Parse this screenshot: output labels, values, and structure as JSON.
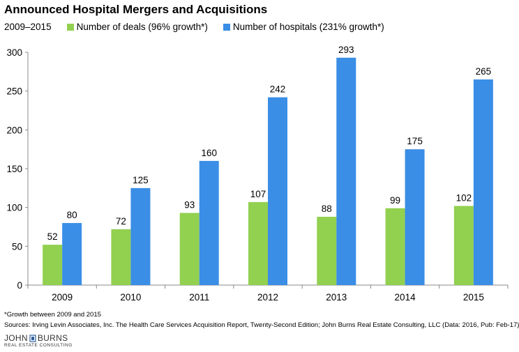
{
  "header": {
    "title": "Announced Hospital Mergers and Acquisitions",
    "period": "2009–2015"
  },
  "legend": [
    {
      "label": "Number of deals (96% growth*)",
      "color": "#92d050"
    },
    {
      "label": "Number of hospitals (231% growth*)",
      "color": "#3a8ee6"
    }
  ],
  "chart_data": {
    "type": "bar",
    "categories": [
      "2009",
      "2010",
      "2011",
      "2012",
      "2013",
      "2014",
      "2015"
    ],
    "series": [
      {
        "name": "Number of deals (96% growth*)",
        "values": [
          52,
          72,
          93,
          107,
          88,
          99,
          102
        ],
        "color": "#92d050"
      },
      {
        "name": "Number of hospitals (231% growth*)",
        "values": [
          80,
          125,
          160,
          242,
          293,
          175,
          265
        ],
        "color": "#3a8ee6"
      }
    ],
    "title": "Announced Hospital Mergers and Acquisitions",
    "subtitle": "2009–2015",
    "xlabel": "",
    "ylabel": "",
    "ylim": [
      0,
      300
    ],
    "yticks": [
      0,
      50,
      100,
      150,
      200,
      250,
      300
    ],
    "grid": false,
    "legend_position": "top"
  },
  "footer": {
    "footnote": "*Growth between 2009 and 2015",
    "sources": "Sources: Irving Levin Associates, Inc. The Health Care Services Acquisition Report, Twenty-Second Edition; John Burns Real Estate Consulting, LLC (Data: 2016, Pub: Feb-17)"
  },
  "logo": {
    "word1": "JOHN",
    "word2": "BURNS",
    "tagline": "REAL ESTATE CONSULTING"
  }
}
